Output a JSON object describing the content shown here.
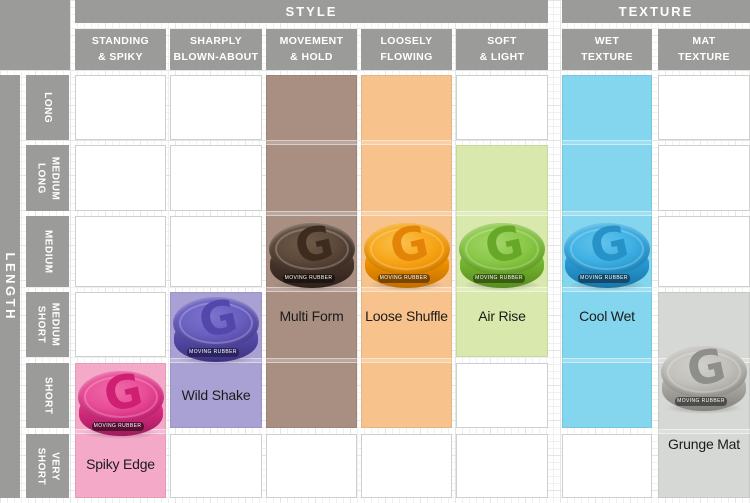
{
  "header": {
    "style_title": "STYLE",
    "texture_title": "TEXTURE"
  },
  "length_axis": {
    "label": "LENGTH",
    "rows": [
      [
        "LONG"
      ],
      [
        "MEDIUM",
        "LONG"
      ],
      [
        "MEDIUM"
      ],
      [
        "MEDIUM",
        "SHORT"
      ],
      [
        "SHORT"
      ],
      [
        "VERY",
        "SHORT"
      ]
    ]
  },
  "columns": [
    {
      "group": "STYLE",
      "lines": [
        "STANDING",
        "& SPIKY"
      ]
    },
    {
      "group": "STYLE",
      "lines": [
        "SHARPLY",
        "BLOWN-ABOUT"
      ]
    },
    {
      "group": "STYLE",
      "lines": [
        "MOVEMENT",
        "& HOLD"
      ]
    },
    {
      "group": "STYLE",
      "lines": [
        "LOOSELY",
        "FLOWING"
      ]
    },
    {
      "group": "STYLE",
      "lines": [
        "SOFT",
        "& LIGHT"
      ]
    },
    {
      "group": "TEXTURE",
      "lines": [
        "WET",
        "TEXTURE"
      ]
    },
    {
      "group": "TEXTURE",
      "lines": [
        "MAT",
        "TEXTURE"
      ]
    }
  ],
  "logo_letter": "G",
  "tin_text": "MOVING RUBBER",
  "products": [
    {
      "name": "Spiky Edge",
      "col": 0,
      "row_start": 4,
      "row_end": 5,
      "tin_row": 4,
      "label_row": 5,
      "band": "#f4a9c8",
      "lid": "#e84e98",
      "lid_hi": "#f06aa8",
      "body": "#d62a7e",
      "body_dark": "#9e1c5c",
      "g": "#cf1f72",
      "strip": "#551034"
    },
    {
      "name": "Wild Shake",
      "col": 1,
      "row_start": 3,
      "row_end": 4,
      "tin_row": 3,
      "label_row": 4,
      "band": "#a9a0d4",
      "lid": "#6a60c0",
      "lid_hi": "#7d74cd",
      "body": "#564aa8",
      "body_dark": "#3d3380",
      "g": "#5447ac",
      "strip": "#2c2460"
    },
    {
      "name": "Multi Form",
      "col": 2,
      "row_start": 0,
      "row_end": 4,
      "tin_row": 2,
      "label_row": 3,
      "band": "#a88f82",
      "lid": "#5e4a3b",
      "lid_hi": "#6f5a49",
      "body": "#46342a",
      "body_dark": "#2e211a",
      "g": "#3d2b1f",
      "strip": "#1f1510"
    },
    {
      "name": "Loose Shuffle",
      "col": 3,
      "row_start": 0,
      "row_end": 4,
      "tin_row": 2,
      "label_row": 3,
      "band": "#f8c28c",
      "lid": "#f7a81c",
      "lid_hi": "#fbc14e",
      "body": "#ef9000",
      "body_dark": "#c26e00",
      "g": "#e38408",
      "strip": "#7a4500"
    },
    {
      "name": "Air Rise",
      "col": 4,
      "row_start": 1,
      "row_end": 3,
      "tin_row": 2,
      "label_row": 3,
      "band": "#d9e8ac",
      "lid": "#8cc94b",
      "lid_hi": "#a2d569",
      "body": "#74b52f",
      "body_dark": "#578c20",
      "g": "#68a829",
      "strip": "#375c12"
    },
    {
      "name": "Cool Wet",
      "col": 5,
      "row_start": 0,
      "row_end": 4,
      "tin_row": 2,
      "label_row": 3,
      "band": "#84d6ee",
      "lid": "#41b2e4",
      "lid_hi": "#63c3ec",
      "body": "#2699d2",
      "body_dark": "#1b76a6",
      "g": "#2792c8",
      "strip": "#114a6b"
    },
    {
      "name": "Grunge Mat",
      "col": 6,
      "row_start": 3,
      "row_end": 5,
      "tin_row": 4,
      "label_row": 5,
      "band": "#d6d8d5",
      "lid": "#c3c1bc",
      "lid_hi": "#d2d0cb",
      "body": "#aaa8a2",
      "body_dark": "#84827d",
      "g": "#8e8e8c",
      "strip": "#4c4c4a"
    }
  ],
  "colors": {
    "header_bg": "#9b9b9a",
    "header_text": "#ffffff",
    "cell_border": "#cdd0cd",
    "label_text": "#1b1b1b"
  },
  "chart_data": {
    "type": "heatmap",
    "title": "Hair wax product matrix: style/texture vs hair length",
    "x_groups": [
      {
        "name": "STYLE",
        "columns": [
          "STANDING & SPIKY",
          "SHARPLY BLOWN-ABOUT",
          "MOVEMENT & HOLD",
          "LOOSELY FLOWING",
          "SOFT & LIGHT"
        ]
      },
      {
        "name": "TEXTURE",
        "columns": [
          "WET TEXTURE",
          "MAT TEXTURE"
        ]
      }
    ],
    "y_axis": {
      "label": "LENGTH",
      "categories": [
        "LONG",
        "MEDIUM LONG",
        "MEDIUM",
        "MEDIUM SHORT",
        "SHORT",
        "VERY SHORT"
      ]
    },
    "products": [
      {
        "name": "Spiky Edge",
        "column": "STANDING & SPIKY",
        "length_range": [
          "SHORT",
          "VERY SHORT"
        ],
        "band_color": "#f4a9c8",
        "tin_color": "#d62a7e"
      },
      {
        "name": "Wild Shake",
        "column": "SHARPLY BLOWN-ABOUT",
        "length_range": [
          "MEDIUM SHORT",
          "SHORT"
        ],
        "band_color": "#a9a0d4",
        "tin_color": "#564aa8"
      },
      {
        "name": "Multi Form",
        "column": "MOVEMENT & HOLD",
        "length_range": [
          "LONG",
          "SHORT"
        ],
        "band_color": "#a88f82",
        "tin_color": "#46342a"
      },
      {
        "name": "Loose Shuffle",
        "column": "LOOSELY FLOWING",
        "length_range": [
          "LONG",
          "SHORT"
        ],
        "band_color": "#f8c28c",
        "tin_color": "#ef9000"
      },
      {
        "name": "Air Rise",
        "column": "SOFT & LIGHT",
        "length_range": [
          "MEDIUM LONG",
          "MEDIUM SHORT"
        ],
        "band_color": "#d9e8ac",
        "tin_color": "#74b52f"
      },
      {
        "name": "Cool Wet",
        "column": "WET TEXTURE",
        "length_range": [
          "LONG",
          "SHORT"
        ],
        "band_color": "#84d6ee",
        "tin_color": "#2699d2"
      },
      {
        "name": "Grunge Mat",
        "column": "MAT TEXTURE",
        "length_range": [
          "MEDIUM SHORT",
          "VERY SHORT"
        ],
        "band_color": "#d6d8d5",
        "tin_color": "#aaa8a2"
      }
    ],
    "grid": true,
    "legend_position": "none"
  }
}
